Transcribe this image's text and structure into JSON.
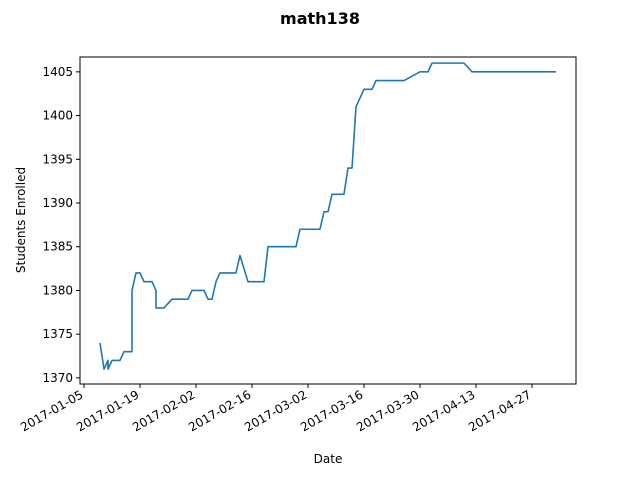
{
  "chart_data": {
    "type": "line",
    "title": "math138",
    "xlabel": "Date",
    "ylabel": "Students Enrolled",
    "xlim": [
      "2017-01-04",
      "2017-05-08"
    ],
    "ylim": [
      1369.3,
      1406.7
    ],
    "yticks": [
      1370,
      1375,
      1380,
      1385,
      1390,
      1395,
      1400,
      1405
    ],
    "xticks": [
      "2017-01-05",
      "2017-01-19",
      "2017-02-02",
      "2017-02-16",
      "2017-03-02",
      "2017-03-16",
      "2017-03-30",
      "2017-04-13",
      "2017-04-27"
    ],
    "grid": false,
    "line_color": "#1f77b4",
    "series": [
      {
        "x": [
          "2017-01-09",
          "2017-01-10",
          "2017-01-11",
          "2017-01-11",
          "2017-01-12",
          "2017-01-14",
          "2017-01-15",
          "2017-01-16",
          "2017-01-17",
          "2017-01-17",
          "2017-01-18",
          "2017-01-19",
          "2017-01-20",
          "2017-01-21",
          "2017-01-22",
          "2017-01-23",
          "2017-01-23",
          "2017-01-24",
          "2017-01-25",
          "2017-01-27",
          "2017-01-28",
          "2017-01-29",
          "2017-01-31",
          "2017-02-01",
          "2017-02-02",
          "2017-02-03",
          "2017-02-04",
          "2017-02-05",
          "2017-02-06",
          "2017-02-07",
          "2017-02-08",
          "2017-02-09",
          "2017-02-12",
          "2017-02-13",
          "2017-02-15",
          "2017-02-16",
          "2017-02-16",
          "2017-02-17",
          "2017-02-18",
          "2017-02-19",
          "2017-02-20",
          "2017-02-21",
          "2017-02-22",
          "2017-02-24",
          "2017-02-27",
          "2017-02-28",
          "2017-03-01",
          "2017-03-02",
          "2017-03-05",
          "2017-03-06",
          "2017-03-07",
          "2017-03-08",
          "2017-03-09",
          "2017-03-10",
          "2017-03-11",
          "2017-03-12",
          "2017-03-13",
          "2017-03-14",
          "2017-03-15",
          "2017-03-16",
          "2017-03-17",
          "2017-03-18",
          "2017-03-19",
          "2017-03-20",
          "2017-03-21",
          "2017-03-23",
          "2017-03-26",
          "2017-03-30",
          "2017-03-31",
          "2017-04-01",
          "2017-04-02",
          "2017-04-03",
          "2017-04-04",
          "2017-04-06",
          "2017-04-08",
          "2017-04-10",
          "2017-04-12",
          "2017-04-13",
          "2017-04-14",
          "2017-04-20",
          "2017-04-27",
          "2017-05-03"
        ],
        "y": [
          1374,
          1371,
          1372,
          1371,
          1372,
          1372,
          1373,
          1373,
          1373,
          1380,
          1382,
          1382,
          1381,
          1381,
          1381,
          1380,
          1378,
          1378,
          1378,
          1379,
          1379,
          1379,
          1379,
          1380,
          1380,
          1380,
          1380,
          1379,
          1379,
          1381,
          1382,
          1382,
          1382,
          1384,
          1381,
          1381,
          1381,
          1381,
          1381,
          1381,
          1385,
          1385,
          1385,
          1385,
          1385,
          1387,
          1387,
          1387,
          1387,
          1389,
          1389,
          1391,
          1391,
          1391,
          1391,
          1394,
          1394,
          1401,
          1402,
          1403,
          1403,
          1403,
          1404,
          1404,
          1404,
          1404,
          1404,
          1405,
          1405,
          1405,
          1406,
          1406,
          1406,
          1406,
          1406,
          1406,
          1405,
          1405,
          1405,
          1405,
          1405,
          1405
        ]
      }
    ]
  }
}
